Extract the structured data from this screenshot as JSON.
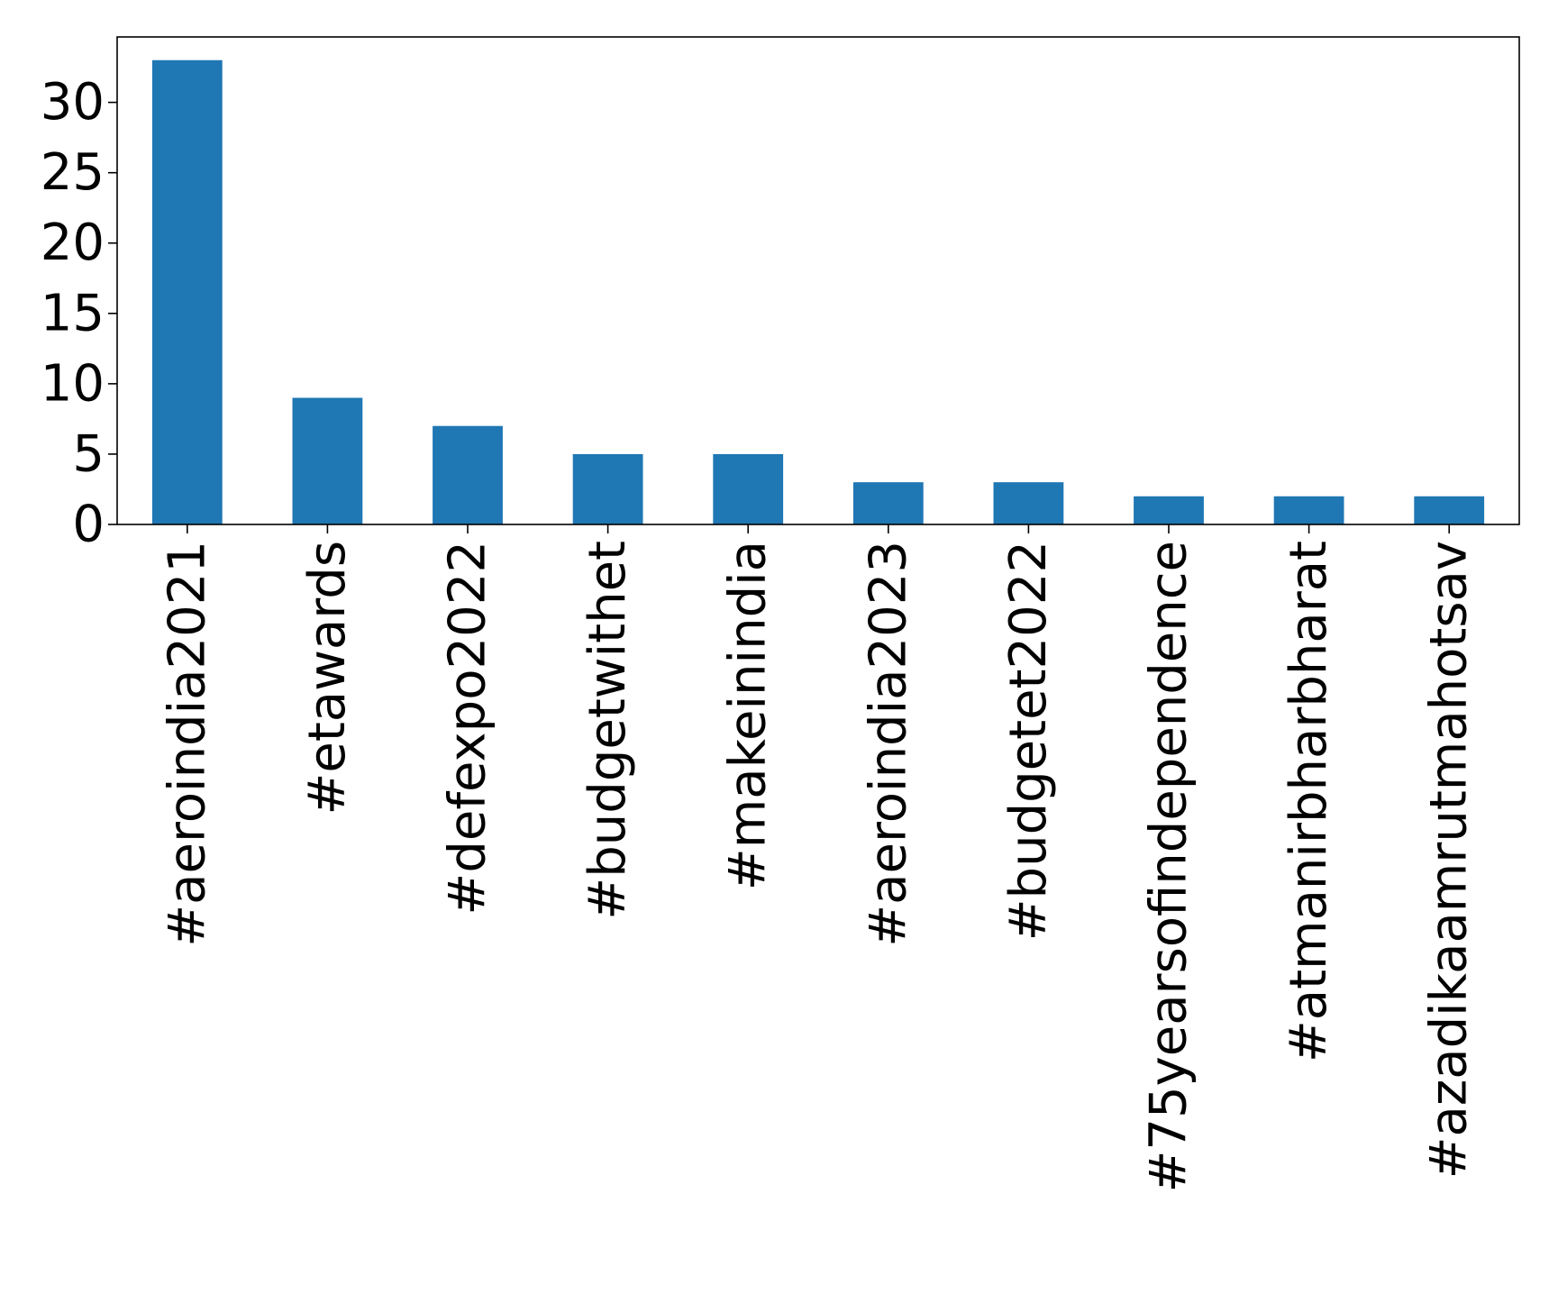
{
  "chart_data": {
    "type": "bar",
    "title": "",
    "xlabel": "",
    "ylabel": "",
    "categories": [
      "#aeroindia2021",
      "#etawards",
      "#defexpo2022",
      "#budgetwithet",
      "#makeinindia",
      "#aeroindia2023",
      "#budgetet2022",
      "#75yearsofindependence",
      "#atmanirbharbharat",
      "#azadikaamrutmahotsav"
    ],
    "values": [
      33,
      9,
      7,
      5,
      5,
      3,
      3,
      2,
      2,
      2
    ],
    "ylim": [
      0,
      34.65
    ],
    "yticks": [
      0,
      5,
      10,
      15,
      20,
      25,
      30
    ],
    "ytick_labels": [
      "0",
      "5",
      "10",
      "15",
      "20",
      "25",
      "30"
    ],
    "bar_color": "#1f77b4",
    "grid": false,
    "legend": "none"
  }
}
